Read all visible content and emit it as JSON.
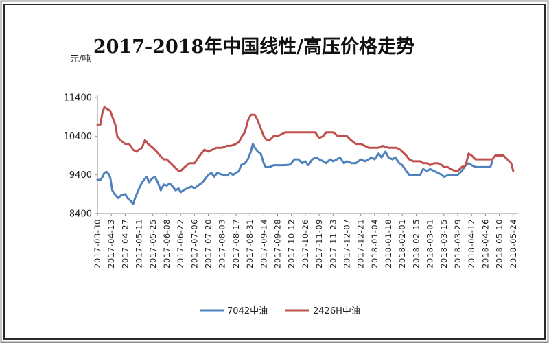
{
  "chart_data": {
    "type": "line",
    "title": "2017-2018年中国线性/高压价格走势",
    "ylabel": "元/吨",
    "ylim": [
      8400,
      11400
    ],
    "yticks": [
      8400,
      9400,
      10400,
      11400
    ],
    "x_tick_labels": [
      "2017-03-30",
      "2017-04-13",
      "2017-04-27",
      "2017-05-11",
      "2017-05-25",
      "2017-06-08",
      "2017-06-22",
      "2017-07-06",
      "2017-07-20",
      "2017-08-03",
      "2017-08-17",
      "2017-08-31",
      "2017-09-14",
      "2017-09-28",
      "2017-10-12",
      "2017-10-26",
      "2017-11-09",
      "2017-11-23",
      "2017-12-07",
      "2017-12-21",
      "2018-01-04",
      "2018-01-18",
      "2018-02-01",
      "2018-02-15",
      "2018-03-01",
      "2018-03-15",
      "2018-03-29",
      "2018-04-12",
      "2018-04-26",
      "2018-05-10",
      "2018-05-24"
    ],
    "xlim": [
      "2017-03-30",
      "2018-05-29"
    ],
    "grid": false,
    "legend_position": "bottom",
    "series": [
      {
        "name": "7042中油",
        "color": "#4f81bd",
        "points": [
          [
            "2017-03-30",
            9270
          ],
          [
            "2017-04-02",
            9270
          ],
          [
            "2017-04-04",
            9340
          ],
          [
            "2017-04-06",
            9450
          ],
          [
            "2017-04-08",
            9480
          ],
          [
            "2017-04-10",
            9430
          ],
          [
            "2017-04-12",
            9320
          ],
          [
            "2017-04-14",
            9000
          ],
          [
            "2017-04-17",
            8880
          ],
          [
            "2017-04-20",
            8800
          ],
          [
            "2017-04-23",
            8870
          ],
          [
            "2017-04-27",
            8900
          ],
          [
            "2017-04-30",
            8780
          ],
          [
            "2017-05-03",
            8720
          ],
          [
            "2017-05-05",
            8640
          ],
          [
            "2017-05-07",
            8800
          ],
          [
            "2017-05-09",
            8920
          ],
          [
            "2017-05-12",
            9100
          ],
          [
            "2017-05-14",
            9200
          ],
          [
            "2017-05-17",
            9300
          ],
          [
            "2017-05-19",
            9350
          ],
          [
            "2017-05-21",
            9200
          ],
          [
            "2017-05-24",
            9300
          ],
          [
            "2017-05-27",
            9350
          ],
          [
            "2017-05-30",
            9200
          ],
          [
            "2017-06-02",
            9000
          ],
          [
            "2017-06-05",
            9150
          ],
          [
            "2017-06-08",
            9120
          ],
          [
            "2017-06-11",
            9180
          ],
          [
            "2017-06-14",
            9100
          ],
          [
            "2017-06-17",
            9000
          ],
          [
            "2017-06-20",
            9050
          ],
          [
            "2017-06-22",
            8950
          ],
          [
            "2017-06-26",
            9020
          ],
          [
            "2017-06-29",
            9050
          ],
          [
            "2017-07-03",
            9100
          ],
          [
            "2017-07-06",
            9050
          ],
          [
            "2017-07-10",
            9130
          ],
          [
            "2017-07-14",
            9200
          ],
          [
            "2017-07-17",
            9300
          ],
          [
            "2017-07-20",
            9400
          ],
          [
            "2017-07-23",
            9450
          ],
          [
            "2017-07-26",
            9350
          ],
          [
            "2017-07-29",
            9450
          ],
          [
            "2017-08-01",
            9420
          ],
          [
            "2017-08-04",
            9400
          ],
          [
            "2017-08-08",
            9380
          ],
          [
            "2017-08-11",
            9450
          ],
          [
            "2017-08-14",
            9400
          ],
          [
            "2017-08-17",
            9450
          ],
          [
            "2017-08-20",
            9500
          ],
          [
            "2017-08-22",
            9650
          ],
          [
            "2017-08-26",
            9700
          ],
          [
            "2017-08-29",
            9800
          ],
          [
            "2017-09-01",
            10000
          ],
          [
            "2017-09-03",
            10200
          ],
          [
            "2017-09-05",
            10100
          ],
          [
            "2017-09-08",
            10000
          ],
          [
            "2017-09-11",
            9950
          ],
          [
            "2017-09-14",
            9700
          ],
          [
            "2017-09-16",
            9600
          ],
          [
            "2017-09-20",
            9600
          ],
          [
            "2017-09-24",
            9650
          ],
          [
            "2017-09-28",
            9650
          ],
          [
            "2017-10-04",
            9650
          ],
          [
            "2017-10-10",
            9660
          ],
          [
            "2017-10-12",
            9700
          ],
          [
            "2017-10-15",
            9800
          ],
          [
            "2017-10-19",
            9800
          ],
          [
            "2017-10-23",
            9700
          ],
          [
            "2017-10-26",
            9750
          ],
          [
            "2017-10-29",
            9650
          ],
          [
            "2017-11-02",
            9800
          ],
          [
            "2017-11-06",
            9850
          ],
          [
            "2017-11-09",
            9800
          ],
          [
            "2017-11-13",
            9750
          ],
          [
            "2017-11-16",
            9700
          ],
          [
            "2017-11-20",
            9800
          ],
          [
            "2017-11-23",
            9750
          ],
          [
            "2017-11-27",
            9800
          ],
          [
            "2017-11-30",
            9850
          ],
          [
            "2017-12-04",
            9700
          ],
          [
            "2017-12-07",
            9750
          ],
          [
            "2017-12-12",
            9700
          ],
          [
            "2017-12-16",
            9700
          ],
          [
            "2017-12-21",
            9800
          ],
          [
            "2017-12-25",
            9750
          ],
          [
            "2017-12-29",
            9800
          ],
          [
            "2018-01-01",
            9850
          ],
          [
            "2018-01-04",
            9800
          ],
          [
            "2018-01-08",
            9950
          ],
          [
            "2018-01-11",
            9850
          ],
          [
            "2018-01-15",
            10000
          ],
          [
            "2018-01-18",
            9850
          ],
          [
            "2018-01-22",
            9800
          ],
          [
            "2018-01-25",
            9850
          ],
          [
            "2018-01-29",
            9700
          ],
          [
            "2018-02-01",
            9650
          ],
          [
            "2018-02-05",
            9500
          ],
          [
            "2018-02-08",
            9400
          ],
          [
            "2018-02-12",
            9400
          ],
          [
            "2018-02-15",
            9400
          ],
          [
            "2018-02-19",
            9400
          ],
          [
            "2018-02-22",
            9550
          ],
          [
            "2018-02-26",
            9500
          ],
          [
            "2018-03-01",
            9550
          ],
          [
            "2018-03-05",
            9500
          ],
          [
            "2018-03-09",
            9450
          ],
          [
            "2018-03-13",
            9400
          ],
          [
            "2018-03-15",
            9350
          ],
          [
            "2018-03-20",
            9400
          ],
          [
            "2018-03-24",
            9400
          ],
          [
            "2018-03-29",
            9400
          ],
          [
            "2018-04-02",
            9500
          ],
          [
            "2018-04-06",
            9650
          ],
          [
            "2018-04-09",
            9700
          ],
          [
            "2018-04-12",
            9650
          ],
          [
            "2018-04-16",
            9600
          ],
          [
            "2018-04-20",
            9600
          ],
          [
            "2018-04-26",
            9600
          ],
          [
            "2018-05-01",
            9600
          ],
          [
            "2018-05-03",
            9750
          ]
        ]
      },
      {
        "name": "2426H中油",
        "color": "#c0504d",
        "points": [
          [
            "2017-03-30",
            10700
          ],
          [
            "2017-04-02",
            10700
          ],
          [
            "2017-04-04",
            11000
          ],
          [
            "2017-04-06",
            11150
          ],
          [
            "2017-04-09",
            11100
          ],
          [
            "2017-04-12",
            11050
          ],
          [
            "2017-04-14",
            10900
          ],
          [
            "2017-04-17",
            10700
          ],
          [
            "2017-04-19",
            10400
          ],
          [
            "2017-04-22",
            10300
          ],
          [
            "2017-04-27",
            10200
          ],
          [
            "2017-05-01",
            10200
          ],
          [
            "2017-05-05",
            10050
          ],
          [
            "2017-05-08",
            10000
          ],
          [
            "2017-05-11",
            10050
          ],
          [
            "2017-05-14",
            10100
          ],
          [
            "2017-05-17",
            10300
          ],
          [
            "2017-05-20",
            10200
          ],
          [
            "2017-05-25",
            10100
          ],
          [
            "2017-05-29",
            10000
          ],
          [
            "2017-06-01",
            9900
          ],
          [
            "2017-06-05",
            9800
          ],
          [
            "2017-06-08",
            9800
          ],
          [
            "2017-06-12",
            9700
          ],
          [
            "2017-06-16",
            9600
          ],
          [
            "2017-06-20",
            9500
          ],
          [
            "2017-06-22",
            9500
          ],
          [
            "2017-06-26",
            9600
          ],
          [
            "2017-07-01",
            9700
          ],
          [
            "2017-07-06",
            9700
          ],
          [
            "2017-07-10",
            9850
          ],
          [
            "2017-07-13",
            9950
          ],
          [
            "2017-07-16",
            10050
          ],
          [
            "2017-07-20",
            10000
          ],
          [
            "2017-07-24",
            10050
          ],
          [
            "2017-07-28",
            10100
          ],
          [
            "2017-08-03",
            10100
          ],
          [
            "2017-08-08",
            10150
          ],
          [
            "2017-08-12",
            10150
          ],
          [
            "2017-08-17",
            10200
          ],
          [
            "2017-08-20",
            10250
          ],
          [
            "2017-08-23",
            10400
          ],
          [
            "2017-08-26",
            10500
          ],
          [
            "2017-08-29",
            10800
          ],
          [
            "2017-09-01",
            10950
          ],
          [
            "2017-09-05",
            10950
          ],
          [
            "2017-09-08",
            10800
          ],
          [
            "2017-09-11",
            10600
          ],
          [
            "2017-09-14",
            10400
          ],
          [
            "2017-09-17",
            10300
          ],
          [
            "2017-09-20",
            10300
          ],
          [
            "2017-09-24",
            10400
          ],
          [
            "2017-09-28",
            10400
          ],
          [
            "2017-10-02",
            10450
          ],
          [
            "2017-10-06",
            10500
          ],
          [
            "2017-10-12",
            10500
          ],
          [
            "2017-10-18",
            10500
          ],
          [
            "2017-10-26",
            10500
          ],
          [
            "2017-11-01",
            10500
          ],
          [
            "2017-11-05",
            10500
          ],
          [
            "2017-11-09",
            10350
          ],
          [
            "2017-11-13",
            10400
          ],
          [
            "2017-11-16",
            10500
          ],
          [
            "2017-11-23",
            10500
          ],
          [
            "2017-11-28",
            10400
          ],
          [
            "2017-12-03",
            10400
          ],
          [
            "2017-12-07",
            10400
          ],
          [
            "2017-12-11",
            10300
          ],
          [
            "2017-12-16",
            10200
          ],
          [
            "2017-12-21",
            10200
          ],
          [
            "2017-12-25",
            10150
          ],
          [
            "2017-12-29",
            10100
          ],
          [
            "2018-01-04",
            10100
          ],
          [
            "2018-01-08",
            10100
          ],
          [
            "2018-01-12",
            10150
          ],
          [
            "2018-01-18",
            10100
          ],
          [
            "2018-01-22",
            10100
          ],
          [
            "2018-01-26",
            10100
          ],
          [
            "2018-01-30",
            10050
          ],
          [
            "2018-02-01",
            10000
          ],
          [
            "2018-02-05",
            9900
          ],
          [
            "2018-02-08",
            9800
          ],
          [
            "2018-02-12",
            9750
          ],
          [
            "2018-02-15",
            9750
          ],
          [
            "2018-02-19",
            9750
          ],
          [
            "2018-02-22",
            9700
          ],
          [
            "2018-02-26",
            9700
          ],
          [
            "2018-03-01",
            9650
          ],
          [
            "2018-03-05",
            9700
          ],
          [
            "2018-03-09",
            9700
          ],
          [
            "2018-03-13",
            9650
          ],
          [
            "2018-03-15",
            9600
          ],
          [
            "2018-03-19",
            9600
          ],
          [
            "2018-03-22",
            9550
          ],
          [
            "2018-03-26",
            9500
          ],
          [
            "2018-03-29",
            9500
          ],
          [
            "2018-04-02",
            9600
          ],
          [
            "2018-04-06",
            9650
          ],
          [
            "2018-04-09",
            9950
          ],
          [
            "2018-04-12",
            9900
          ],
          [
            "2018-04-16",
            9800
          ],
          [
            "2018-04-20",
            9800
          ],
          [
            "2018-04-26",
            9800
          ],
          [
            "2018-05-03",
            9800
          ],
          [
            "2018-05-06",
            9900
          ],
          [
            "2018-05-10",
            9900
          ],
          [
            "2018-05-14",
            9900
          ],
          [
            "2018-05-18",
            9800
          ],
          [
            "2018-05-22",
            9700
          ],
          [
            "2018-05-24",
            9500
          ]
        ]
      }
    ]
  }
}
